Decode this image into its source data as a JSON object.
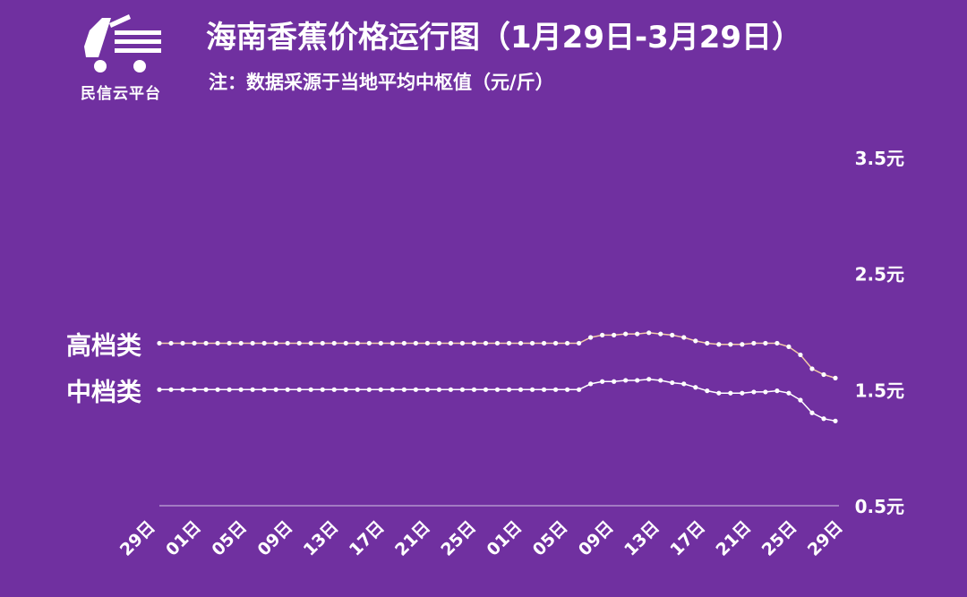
{
  "header": {
    "title": "海南香蕉价格运行图（1月29日-3月29日）",
    "subtitle": "注：数据采源于当地平均中枢值（元/斤）",
    "logo_text": "民信云平台"
  },
  "colors": {
    "background": "#7030a0",
    "high_line": "#f2c9a6",
    "mid_line": "#ffffff",
    "axis": "#c0a8d8"
  },
  "chart_data": {
    "type": "line",
    "x_ticks": [
      "29日",
      "01日",
      "05日",
      "09日",
      "13日",
      "17日",
      "21日",
      "25日",
      "01日",
      "05日",
      "09日",
      "13日",
      "17日",
      "21日",
      "25日",
      "29日"
    ],
    "ylim": [
      0.5,
      3.5
    ],
    "y_ticks": [
      "3.5元",
      "2.5元",
      "1.5元",
      "0.5元"
    ],
    "y_tick_values": [
      3.5,
      2.5,
      1.5,
      0.5
    ],
    "series": [
      {
        "name": "高档类",
        "values": [
          1.9,
          1.9,
          1.9,
          1.9,
          1.9,
          1.9,
          1.9,
          1.9,
          1.9,
          1.9,
          1.9,
          1.9,
          1.9,
          1.9,
          1.9,
          1.9,
          1.9,
          1.9,
          1.9,
          1.9,
          1.9,
          1.9,
          1.9,
          1.9,
          1.9,
          1.9,
          1.9,
          1.9,
          1.9,
          1.9,
          1.9,
          1.9,
          1.9,
          1.9,
          1.9,
          1.9,
          1.9,
          1.95,
          1.97,
          1.97,
          1.98,
          1.98,
          1.99,
          1.98,
          1.97,
          1.95,
          1.92,
          1.9,
          1.89,
          1.89,
          1.89,
          1.9,
          1.9,
          1.9,
          1.87,
          1.8,
          1.68,
          1.63,
          1.6
        ]
      },
      {
        "name": "中档类",
        "values": [
          1.5,
          1.5,
          1.5,
          1.5,
          1.5,
          1.5,
          1.5,
          1.5,
          1.5,
          1.5,
          1.5,
          1.5,
          1.5,
          1.5,
          1.5,
          1.5,
          1.5,
          1.5,
          1.5,
          1.5,
          1.5,
          1.5,
          1.5,
          1.5,
          1.5,
          1.5,
          1.5,
          1.5,
          1.5,
          1.5,
          1.5,
          1.5,
          1.5,
          1.5,
          1.5,
          1.5,
          1.5,
          1.55,
          1.57,
          1.57,
          1.58,
          1.58,
          1.59,
          1.58,
          1.56,
          1.55,
          1.52,
          1.49,
          1.47,
          1.47,
          1.47,
          1.48,
          1.48,
          1.49,
          1.47,
          1.41,
          1.3,
          1.25,
          1.23
        ]
      }
    ]
  }
}
